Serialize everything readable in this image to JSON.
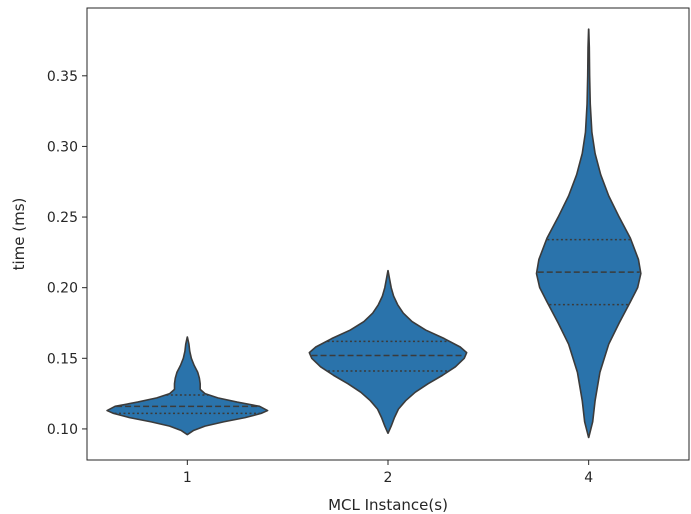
{
  "chart_data": {
    "type": "violin",
    "title": "",
    "xlabel": "MCL Instance(s)",
    "ylabel": "time (ms)",
    "categories": [
      "1",
      "2",
      "4"
    ],
    "ylim": [
      0.078,
      0.398
    ],
    "yticks": [
      0.1,
      0.15,
      0.2,
      0.25,
      0.3,
      0.35
    ],
    "ytick_labels": [
      "0.10",
      "0.15",
      "0.20",
      "0.25",
      "0.30",
      "0.35"
    ],
    "grid": false,
    "fill_color": "#2a73ab",
    "edge_color": "#3b3b3b",
    "violins": [
      {
        "category": "1",
        "min": 0.096,
        "max": 0.165,
        "quartiles": [
          0.111,
          0.116,
          0.124
        ],
        "profile": [
          [
            0.096,
            0.001
          ],
          [
            0.099,
            0.08
          ],
          [
            0.102,
            0.22
          ],
          [
            0.105,
            0.45
          ],
          [
            0.108,
            0.72
          ],
          [
            0.111,
            0.92
          ],
          [
            0.113,
            1.0
          ],
          [
            0.116,
            0.9
          ],
          [
            0.119,
            0.62
          ],
          [
            0.122,
            0.38
          ],
          [
            0.125,
            0.22
          ],
          [
            0.128,
            0.16
          ],
          [
            0.132,
            0.16
          ],
          [
            0.136,
            0.15
          ],
          [
            0.14,
            0.13
          ],
          [
            0.145,
            0.085
          ],
          [
            0.15,
            0.05
          ],
          [
            0.155,
            0.03
          ],
          [
            0.16,
            0.02
          ],
          [
            0.165,
            0.001
          ]
        ]
      },
      {
        "category": "2",
        "min": 0.097,
        "max": 0.212,
        "quartiles": [
          0.141,
          0.152,
          0.162
        ],
        "profile": [
          [
            0.097,
            0.001
          ],
          [
            0.102,
            0.04
          ],
          [
            0.108,
            0.08
          ],
          [
            0.114,
            0.13
          ],
          [
            0.12,
            0.22
          ],
          [
            0.126,
            0.34
          ],
          [
            0.132,
            0.5
          ],
          [
            0.138,
            0.68
          ],
          [
            0.144,
            0.84
          ],
          [
            0.15,
            0.95
          ],
          [
            0.154,
            0.98
          ],
          [
            0.158,
            0.9
          ],
          [
            0.164,
            0.7
          ],
          [
            0.17,
            0.47
          ],
          [
            0.176,
            0.3
          ],
          [
            0.182,
            0.19
          ],
          [
            0.188,
            0.12
          ],
          [
            0.194,
            0.07
          ],
          [
            0.2,
            0.04
          ],
          [
            0.206,
            0.02
          ],
          [
            0.212,
            0.001
          ]
        ]
      },
      {
        "category": "4",
        "min": 0.094,
        "max": 0.383,
        "quartiles": [
          0.188,
          0.211,
          0.234
        ],
        "profile": [
          [
            0.094,
            0.001
          ],
          [
            0.105,
            0.05
          ],
          [
            0.12,
            0.08
          ],
          [
            0.14,
            0.14
          ],
          [
            0.16,
            0.25
          ],
          [
            0.175,
            0.38
          ],
          [
            0.19,
            0.52
          ],
          [
            0.2,
            0.61
          ],
          [
            0.21,
            0.65
          ],
          [
            0.22,
            0.62
          ],
          [
            0.235,
            0.52
          ],
          [
            0.25,
            0.38
          ],
          [
            0.265,
            0.25
          ],
          [
            0.28,
            0.15
          ],
          [
            0.295,
            0.08
          ],
          [
            0.31,
            0.04
          ],
          [
            0.33,
            0.02
          ],
          [
            0.35,
            0.012
          ],
          [
            0.37,
            0.008
          ],
          [
            0.383,
            0.001
          ]
        ]
      }
    ]
  }
}
